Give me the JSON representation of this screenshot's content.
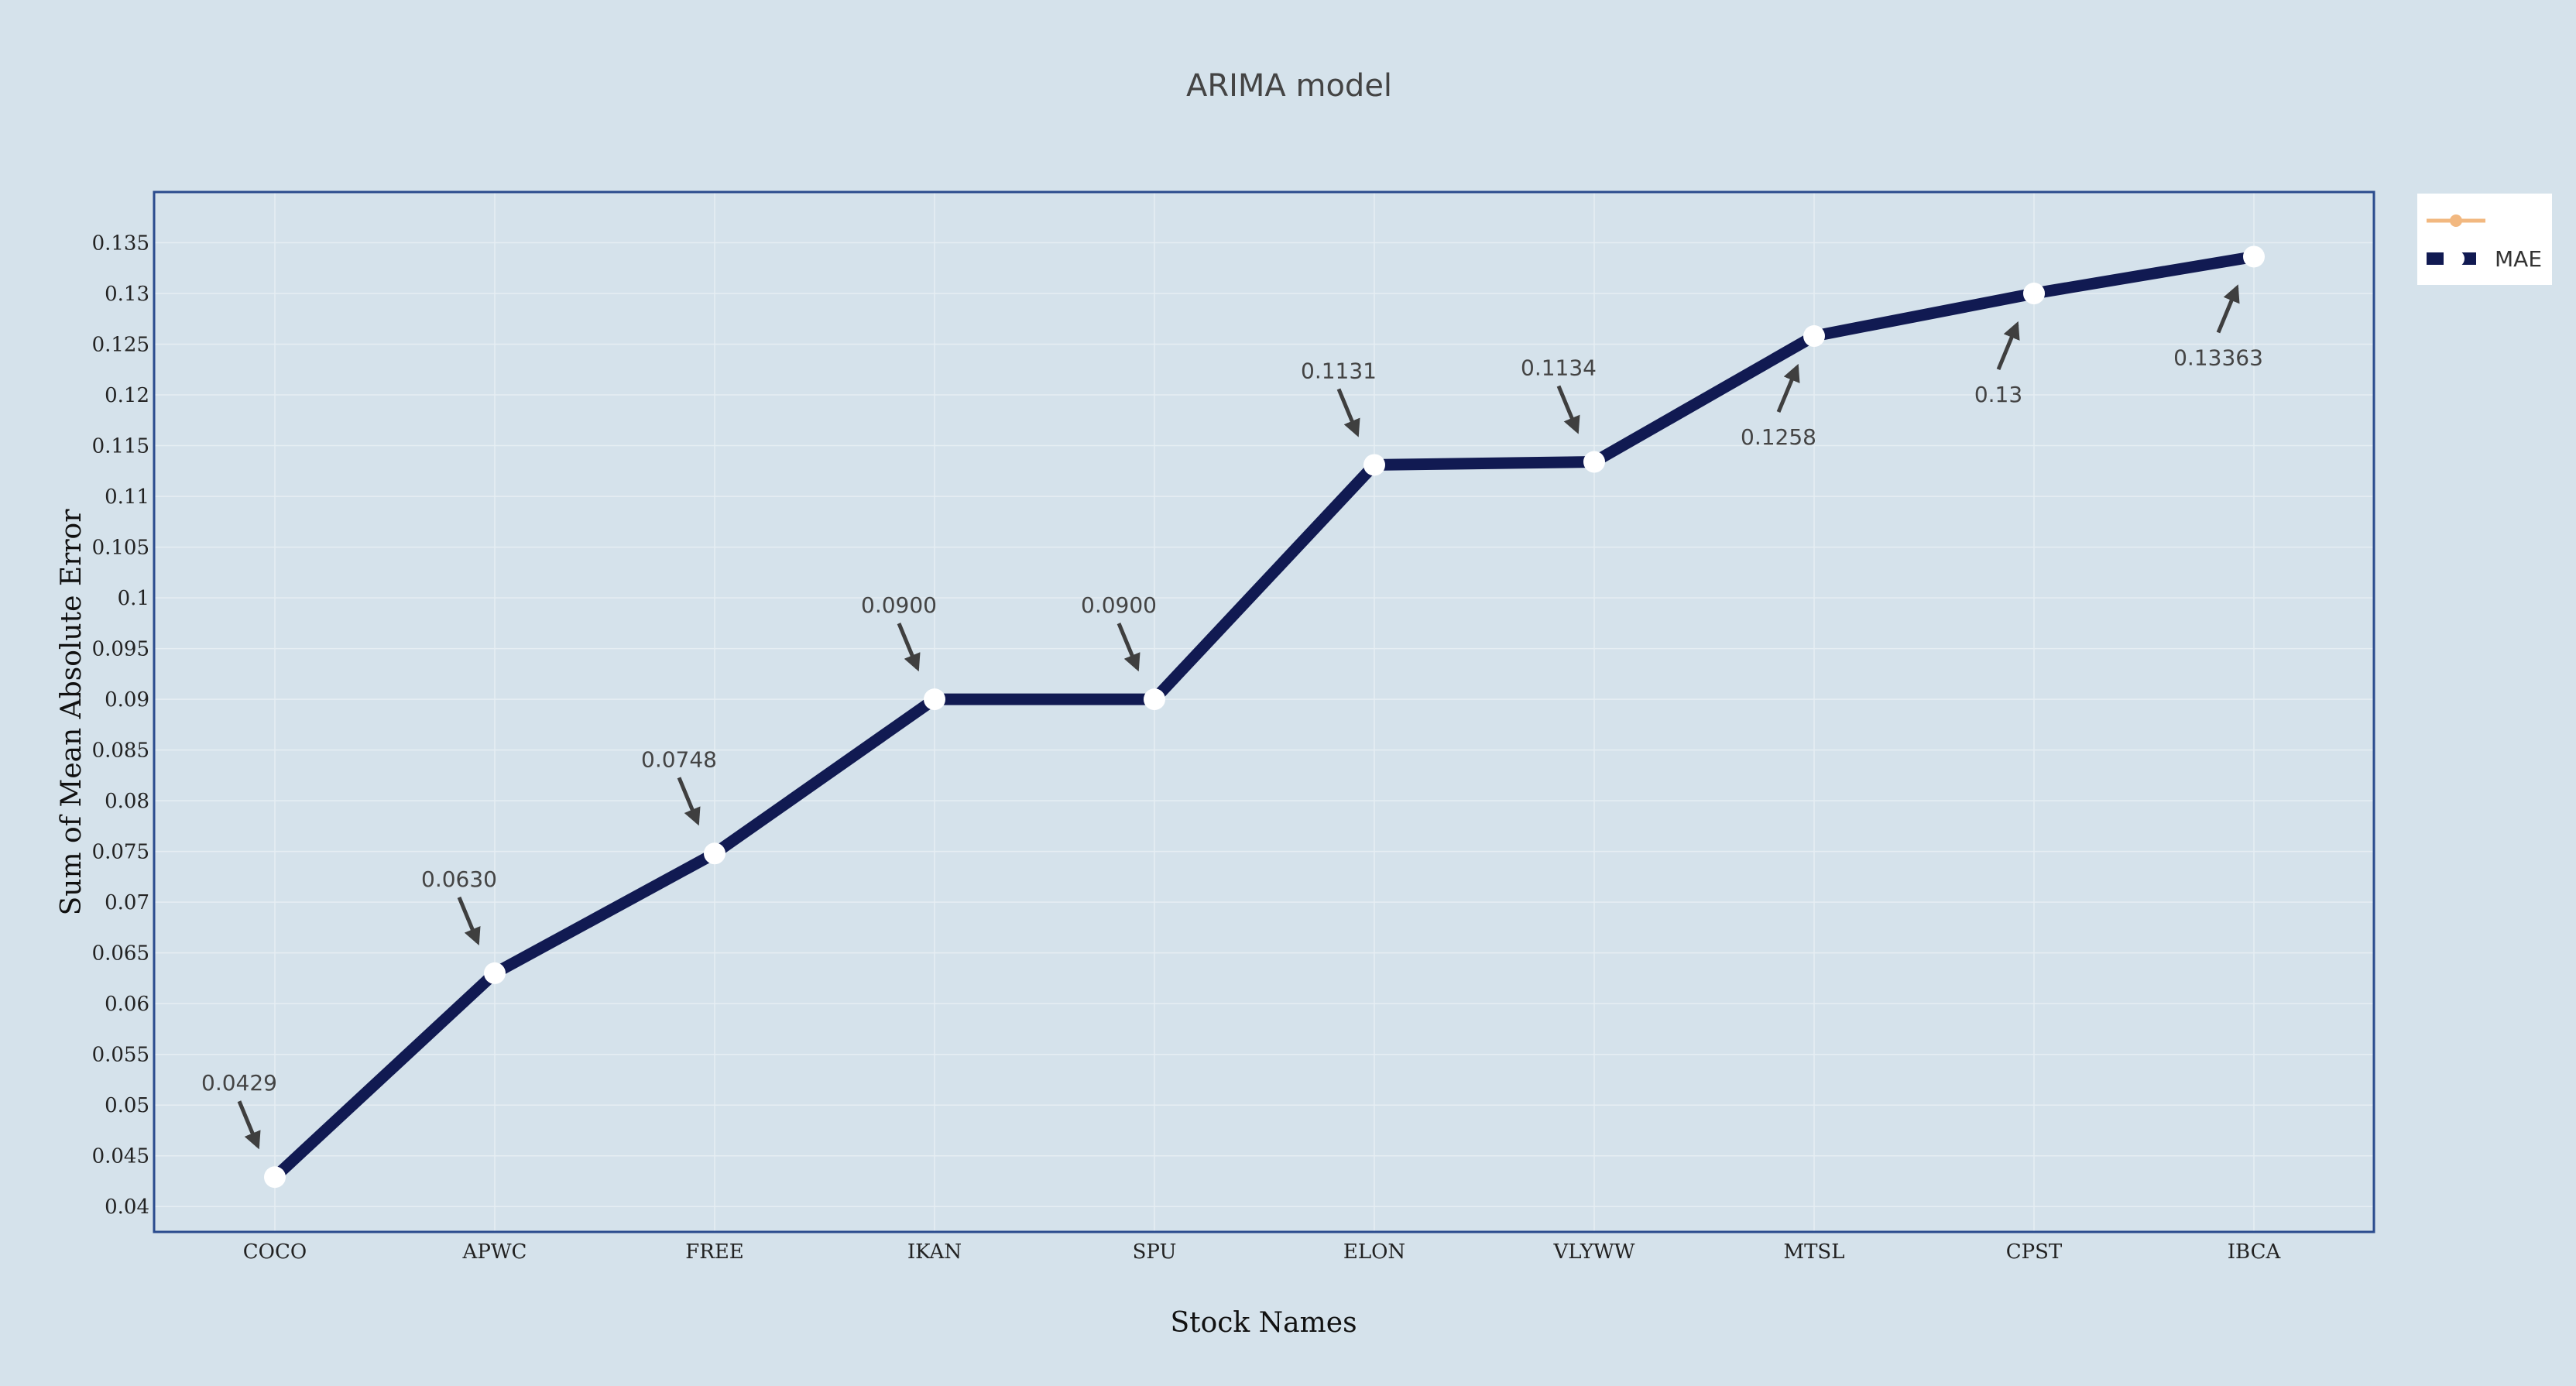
{
  "chart_data": {
    "type": "line",
    "title": "ARIMA model",
    "xlabel": "Stock Names",
    "ylabel": "Sum of Mean Absolute Error",
    "categories": [
      "COCO",
      "APWC",
      "FREE",
      "IKAN",
      "SPU",
      "ELON",
      "VLYWW",
      "MTSL",
      "CPST",
      "IBCA"
    ],
    "series": [
      {
        "name": "MAE",
        "color": "#111a52",
        "values": [
          0.0429,
          0.063,
          0.0748,
          0.09,
          0.09,
          0.1131,
          0.1134,
          0.1258,
          0.13,
          0.13363
        ]
      }
    ],
    "legend_entries": [
      "",
      "MAE"
    ],
    "legend_colors": [
      "#f2b880",
      "#111a52"
    ],
    "annotations": [
      "0.0429",
      "0.0630",
      "0.0748",
      "0.0900",
      "0.0900",
      "0.1131",
      "0.1134",
      "0.1258",
      "0.13",
      "0.13363"
    ],
    "annotation_side": [
      "above",
      "above",
      "above",
      "above",
      "above",
      "above",
      "above",
      "below",
      "below",
      "below"
    ],
    "ylim": [
      0.0375,
      0.14
    ],
    "yticks": [
      0.04,
      0.045,
      0.05,
      0.055,
      0.06,
      0.065,
      0.07,
      0.075,
      0.08,
      0.085,
      0.09,
      0.095,
      0.1,
      0.105,
      0.11,
      0.115,
      0.12,
      0.125,
      0.13,
      0.135
    ],
    "ytick_labels": [
      "0.04",
      "0.045",
      "0.05",
      "0.055",
      "0.06",
      "0.065",
      "0.07",
      "0.075",
      "0.08",
      "0.085",
      "0.09",
      "0.095",
      "0.1",
      "0.105",
      "0.11",
      "0.115",
      "0.12",
      "0.125",
      "0.13",
      "0.135"
    ],
    "grid": true,
    "legend_position": "top-right"
  }
}
